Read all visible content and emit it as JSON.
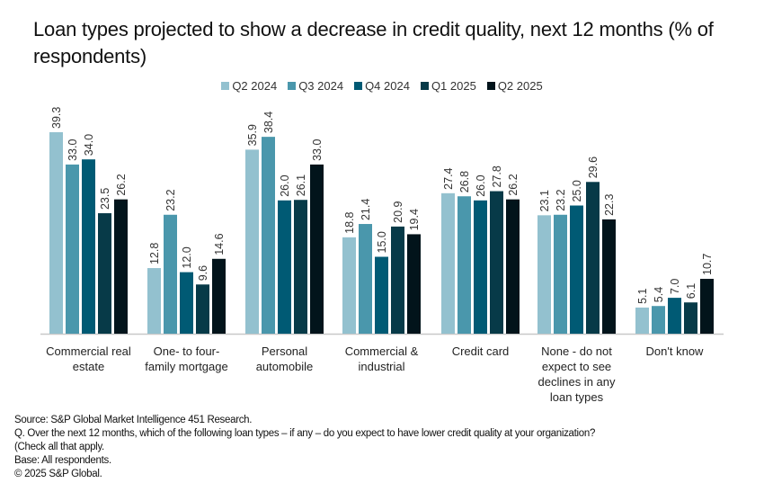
{
  "title": "Loan types projected to show a decrease in credit quality, next 12 months (% of respondents)",
  "footer": {
    "source": "Source: S&P Global Market Intelligence 451 Research.",
    "question": "Q.  Over the next 12 months, which of the following loan types – if any – do you expect to have lower credit quality at your organization?",
    "question_cont": "(Check all that apply.",
    "base": "Base: All respondents.",
    "copyright": "© 2025 S&P Global."
  },
  "chart_data": {
    "type": "bar",
    "title": "Loan types projected to show a decrease in credit quality, next 12 months (% of respondents)",
    "xlabel": "",
    "ylabel": "% of respondents",
    "ylim": [
      0,
      40
    ],
    "grid": false,
    "legend_position": "top-center",
    "categories": [
      [
        "Commercial real",
        "estate"
      ],
      [
        "One- to four-",
        "family mortgage"
      ],
      [
        "Personal",
        "automobile"
      ],
      [
        "Commercial &",
        "industrial"
      ],
      [
        "Credit card"
      ],
      [
        "None - do not",
        "expect to see",
        "declines in any",
        "loan types"
      ],
      [
        "Don't know"
      ]
    ],
    "series": [
      {
        "name": "Q2 2024",
        "color": "#93c1cf",
        "values": [
          39.3,
          12.8,
          35.9,
          18.8,
          27.4,
          23.1,
          5.1
        ]
      },
      {
        "name": "Q3 2024",
        "color": "#4a97ac",
        "values": [
          33.0,
          23.2,
          38.4,
          21.4,
          26.8,
          23.2,
          5.4
        ]
      },
      {
        "name": "Q4 2024",
        "color": "#005a74",
        "values": [
          34.0,
          12.0,
          26.0,
          15.0,
          26.0,
          25.0,
          7.0
        ]
      },
      {
        "name": "Q1 2025",
        "color": "#073a48",
        "values": [
          23.5,
          9.6,
          26.1,
          20.9,
          27.8,
          29.6,
          6.1
        ]
      },
      {
        "name": "Q2 2025",
        "color": "#02141b",
        "values": [
          26.2,
          14.6,
          33.0,
          19.4,
          26.2,
          22.3,
          10.7
        ]
      }
    ]
  }
}
